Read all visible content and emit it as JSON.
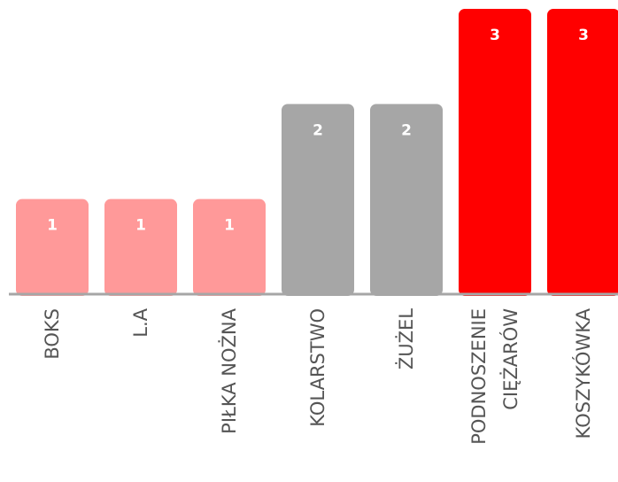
{
  "chart_data": {
    "type": "bar",
    "categories": [
      [
        "BOKS"
      ],
      [
        "L.A"
      ],
      [
        "PIŁKA NOŻNA"
      ],
      [
        "KOLARSTWO"
      ],
      [
        "ŻUŻEL"
      ],
      [
        "PODNOSZENIE",
        "CIĘŻARÓW"
      ],
      [
        "KOSZYKÓWKA"
      ]
    ],
    "values": [
      1,
      1,
      1,
      2,
      2,
      3,
      3
    ],
    "data_labels": [
      "1",
      "1",
      "1",
      "2",
      "2",
      "3",
      "3"
    ],
    "bar_colors": [
      "#ff9999",
      "#ff9999",
      "#ff9999",
      "#a6a6a6",
      "#a6a6a6",
      "#ff0000",
      "#ff0000"
    ],
    "axis_color": "#a6a6a6",
    "category_label_rotation": "vertical",
    "ylim": [
      0,
      3
    ],
    "grid": false,
    "legend": "none",
    "title": "",
    "xlabel": "",
    "ylabel": ""
  }
}
